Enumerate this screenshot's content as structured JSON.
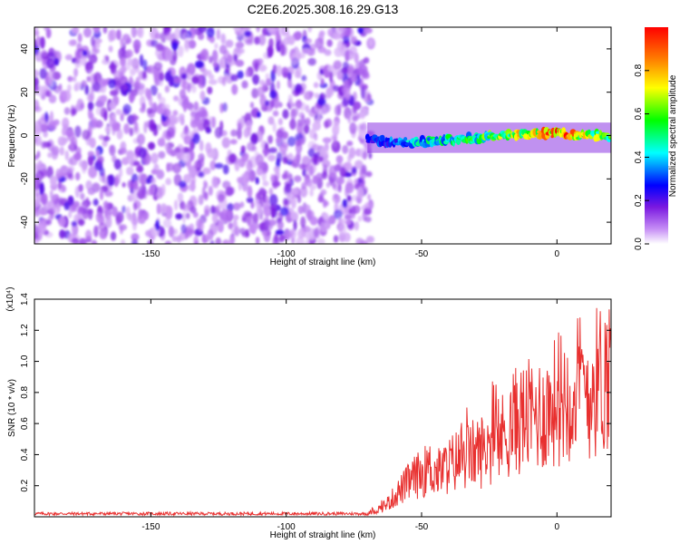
{
  "title": "C2E6.2025.308.16.29.G13",
  "chart_data": [
    {
      "type": "heatmap",
      "xlabel": "Height of straight line (km)",
      "ylabel": "Frequency (Hz)",
      "xlim": [
        -193,
        20
      ],
      "ylim": [
        -50,
        50
      ],
      "xticks": [
        -150,
        -100,
        -50,
        0
      ],
      "yticks": [
        -40,
        -20,
        0,
        20,
        40
      ],
      "noise_region_x": [
        -193,
        -70
      ],
      "signal_region_x": [
        -70,
        20
      ],
      "signal_ridge": {
        "x": [
          -70,
          -60,
          -50,
          -40,
          -30,
          -20,
          -10,
          0,
          10,
          20
        ],
        "freq": [
          -2,
          -3,
          -3,
          -2,
          -1,
          0,
          1,
          1,
          0,
          0
        ],
        "amplitude": [
          0.25,
          0.35,
          0.45,
          0.5,
          0.55,
          0.65,
          0.8,
          0.95,
          0.75,
          0.6
        ]
      },
      "colorbar": {
        "label": "Normalized spectral amplitude",
        "ticks": [
          "0.0",
          "0.2",
          "0.4",
          "0.6",
          "0.8"
        ],
        "range": [
          0,
          1
        ],
        "colors": [
          "#ffffff",
          "#8a2be2",
          "#0000ff",
          "#00ffff",
          "#00ff00",
          "#ffff00",
          "#ff8000",
          "#ff0000"
        ]
      }
    },
    {
      "type": "line",
      "xlabel": "Height of straight line (km)",
      "ylabel": "SNR (10 * v/v)",
      "multiplier_label": "(x10⁴)",
      "xlim": [
        -193,
        20
      ],
      "ylim": [
        0,
        1.4
      ],
      "xticks": [
        -150,
        -100,
        -50,
        0
      ],
      "yticks": [
        "0.2",
        "0.4",
        "0.6",
        "0.8",
        "1.0",
        "1.2",
        "1.4"
      ],
      "line_color": "#e8302f",
      "series": [
        {
          "x": [
            -193,
            -70,
            -66,
            -62,
            -58,
            -54,
            -50,
            -47,
            -44,
            -40,
            -36,
            -32,
            -28,
            -24,
            -20,
            -16,
            -12,
            -8,
            -4,
            0,
            4,
            8,
            12,
            16,
            20
          ],
          "y": [
            0.02,
            0.02,
            0.05,
            0.1,
            0.18,
            0.25,
            0.3,
            0.33,
            0.3,
            0.35,
            0.4,
            0.42,
            0.45,
            0.5,
            0.55,
            0.65,
            0.68,
            0.7,
            0.72,
            0.8,
            0.85,
            0.9,
            0.88,
            0.95,
            1.0
          ]
        }
      ]
    }
  ]
}
